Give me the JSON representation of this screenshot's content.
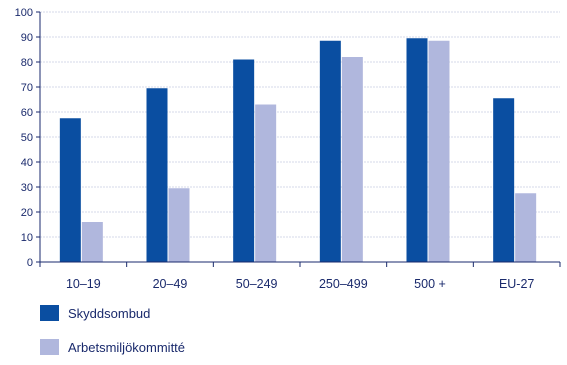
{
  "chart_data": {
    "type": "bar",
    "categories": [
      "10–19",
      "20–49",
      "50–249",
      "250–499",
      "500 +",
      "EU-27"
    ],
    "series": [
      {
        "name": "Skyddsombud",
        "values": [
          57.5,
          69.5,
          81,
          88.5,
          89.5,
          65.5
        ],
        "color": "#0a4ea1"
      },
      {
        "name": "Arbetsmiljökommitté",
        "values": [
          16,
          29.5,
          63,
          82,
          88.5,
          27.5
        ],
        "color": "#b0b7dd"
      }
    ],
    "ylim": [
      0,
      100
    ],
    "yticks": [
      0,
      10,
      20,
      30,
      40,
      50,
      60,
      70,
      80,
      90,
      100
    ],
    "grid": true,
    "legend_position": "bottom-left",
    "axis_color": "#1a2a6c",
    "grid_color": "#d6d9e8"
  }
}
